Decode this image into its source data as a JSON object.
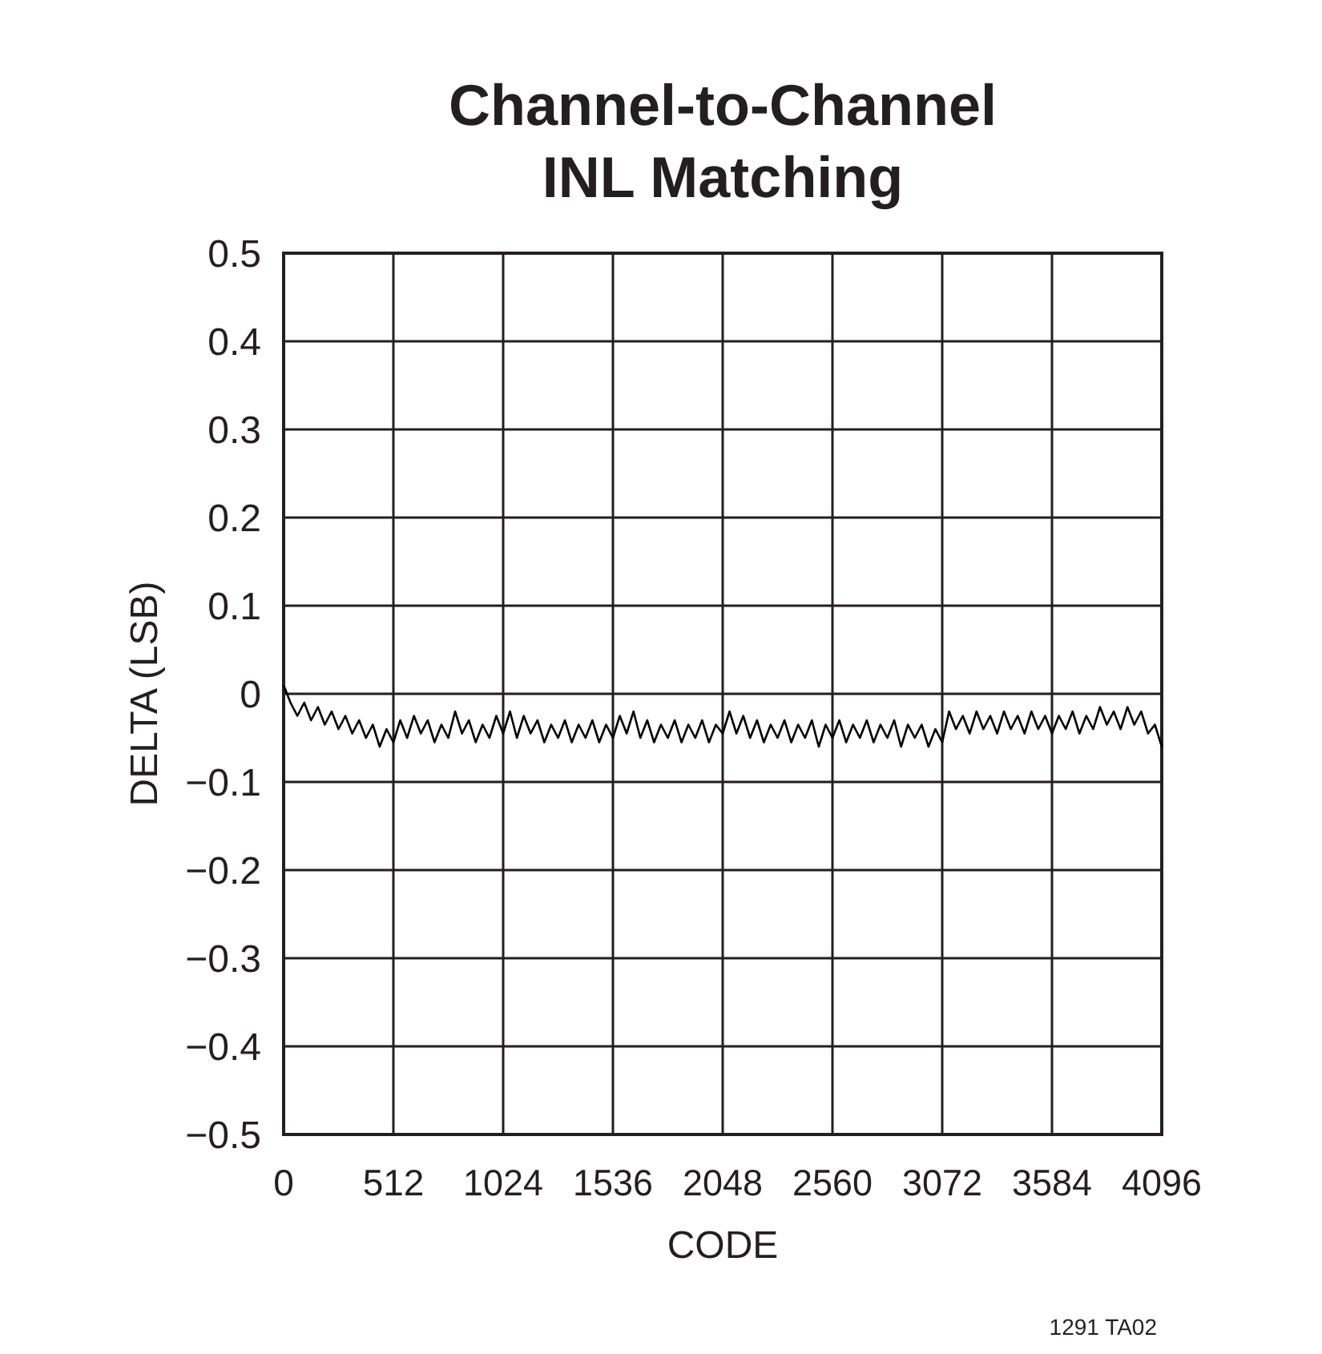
{
  "chart_data": {
    "type": "line",
    "title": "Channel-to-Channel\nINL Matching",
    "xlabel": "CODE",
    "ylabel": "DELTA (LSB)",
    "annotations": [
      "1291 TA02"
    ],
    "x": [
      0,
      32,
      64,
      96,
      128,
      160,
      192,
      224,
      256,
      288,
      320,
      352,
      384,
      416,
      448,
      480,
      512,
      544,
      576,
      608,
      640,
      672,
      704,
      736,
      768,
      800,
      832,
      864,
      896,
      928,
      960,
      992,
      1024,
      1056,
      1088,
      1120,
      1152,
      1184,
      1216,
      1248,
      1280,
      1312,
      1344,
      1376,
      1408,
      1440,
      1472,
      1504,
      1536,
      1568,
      1600,
      1632,
      1664,
      1696,
      1728,
      1760,
      1792,
      1824,
      1856,
      1888,
      1920,
      1952,
      1984,
      2016,
      2048,
      2080,
      2112,
      2144,
      2176,
      2208,
      2240,
      2272,
      2304,
      2336,
      2368,
      2400,
      2432,
      2464,
      2496,
      2528,
      2560,
      2592,
      2624,
      2656,
      2688,
      2720,
      2752,
      2784,
      2816,
      2848,
      2880,
      2912,
      2944,
      2976,
      3008,
      3040,
      3072,
      3104,
      3136,
      3168,
      3200,
      3232,
      3264,
      3296,
      3328,
      3360,
      3392,
      3424,
      3456,
      3488,
      3520,
      3552,
      3584,
      3616,
      3648,
      3680,
      3712,
      3744,
      3776,
      3808,
      3840,
      3872,
      3904,
      3936,
      3968,
      4000,
      4032,
      4064,
      4096
    ],
    "series": [
      {
        "color": "#000000",
        "values": [
          0.01,
          -0.01,
          -0.025,
          -0.01,
          -0.03,
          -0.015,
          -0.035,
          -0.02,
          -0.04,
          -0.025,
          -0.045,
          -0.03,
          -0.05,
          -0.035,
          -0.06,
          -0.04,
          -0.055,
          -0.03,
          -0.05,
          -0.025,
          -0.045,
          -0.03,
          -0.055,
          -0.035,
          -0.05,
          -0.02,
          -0.045,
          -0.03,
          -0.055,
          -0.035,
          -0.05,
          -0.025,
          -0.045,
          -0.02,
          -0.05,
          -0.025,
          -0.045,
          -0.03,
          -0.055,
          -0.035,
          -0.05,
          -0.03,
          -0.055,
          -0.035,
          -0.05,
          -0.03,
          -0.055,
          -0.035,
          -0.05,
          -0.025,
          -0.045,
          -0.02,
          -0.05,
          -0.03,
          -0.055,
          -0.035,
          -0.05,
          -0.03,
          -0.055,
          -0.035,
          -0.05,
          -0.03,
          -0.055,
          -0.035,
          -0.045,
          -0.02,
          -0.045,
          -0.025,
          -0.05,
          -0.03,
          -0.055,
          -0.035,
          -0.05,
          -0.03,
          -0.055,
          -0.035,
          -0.05,
          -0.03,
          -0.06,
          -0.035,
          -0.05,
          -0.03,
          -0.055,
          -0.035,
          -0.05,
          -0.03,
          -0.055,
          -0.035,
          -0.05,
          -0.03,
          -0.06,
          -0.035,
          -0.05,
          -0.035,
          -0.06,
          -0.04,
          -0.055,
          -0.02,
          -0.04,
          -0.025,
          -0.045,
          -0.02,
          -0.04,
          -0.025,
          -0.045,
          -0.02,
          -0.04,
          -0.025,
          -0.045,
          -0.02,
          -0.04,
          -0.025,
          -0.045,
          -0.025,
          -0.04,
          -0.02,
          -0.045,
          -0.025,
          -0.04,
          -0.015,
          -0.035,
          -0.02,
          -0.04,
          -0.015,
          -0.035,
          -0.02,
          -0.045,
          -0.035,
          -0.06
        ]
      }
    ],
    "xlim": [
      0,
      4096
    ],
    "xticks": [
      0,
      512,
      1024,
      1536,
      2048,
      2560,
      3072,
      3584,
      4096
    ],
    "ylim": [
      -0.5,
      0.5
    ],
    "yticks": [
      {
        "value": -0.5,
        "label": "−0.5"
      },
      {
        "value": -0.4,
        "label": "−0.4"
      },
      {
        "value": -0.3,
        "label": "−0.3"
      },
      {
        "value": -0.2,
        "label": "−0.2"
      },
      {
        "value": -0.1,
        "label": "−0.1"
      },
      0,
      0.1,
      0.2,
      0.3,
      0.4,
      0.5
    ],
    "grid": true,
    "line_style": "solid",
    "marker": "none"
  }
}
